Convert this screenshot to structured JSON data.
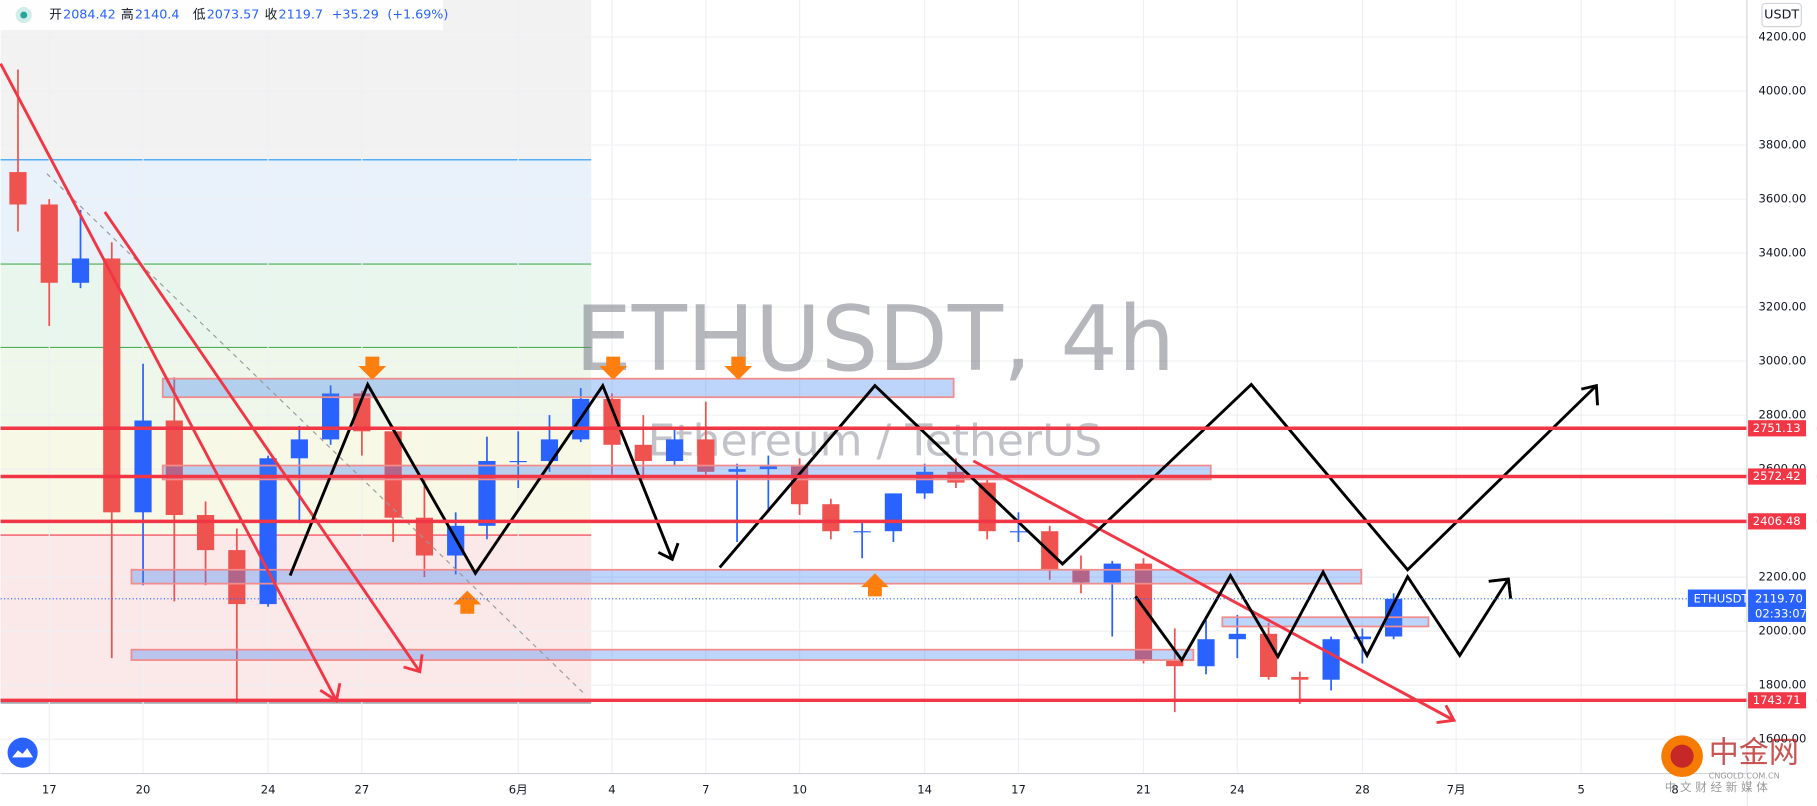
{
  "chart_data": {
    "type": "candlestick",
    "header": {
      "open_label": "开",
      "open": 2084.42,
      "high_label": "高",
      "high": 2140.4,
      "low_label": "低",
      "low": 2073.57,
      "close_label": "收",
      "close": 2119.7,
      "change": {
        "value": 35.29,
        "label": "+35.29"
      },
      "change_pct": {
        "value": 1.69,
        "label": "(+1.69%)"
      }
    },
    "watermark_title": "ETHUSDT, 4h",
    "watermark_subtitle": "Ethereum / TetherUS",
    "currency": "USDT",
    "colors": {
      "up": "#2962ff",
      "down": "#ef5350",
      "level": "#f23645"
    },
    "x": [
      -1,
      0,
      1,
      2,
      3,
      4,
      5,
      6,
      7,
      8,
      9,
      10,
      11,
      12,
      13,
      14,
      15,
      16,
      17,
      18,
      19,
      20,
      21,
      22,
      23,
      24,
      25,
      26,
      27,
      28,
      29,
      30,
      31,
      32,
      33,
      34,
      35,
      36,
      37,
      38,
      39,
      40,
      41,
      42,
      43
    ],
    "open": [
      3700,
      3580,
      3290,
      3380,
      2440,
      2780,
      2430,
      2300,
      2100,
      2640,
      2710,
      2880,
      2740,
      2420,
      2280,
      2390,
      2630,
      2630,
      2710,
      2860,
      2690,
      2630,
      2710,
      2590,
      2600,
      2610,
      2470,
      2370,
      2370,
      2510,
      2590,
      2550,
      2370,
      2370,
      2230,
      2180,
      2250,
      1890,
      1870,
      1970,
      1990,
      1830,
      1820,
      1970,
      1980
    ],
    "high": [
      4080,
      3600,
      3560,
      3440,
      2990,
      2940,
      2480,
      2380,
      2650,
      2760,
      2910,
      2890,
      2760,
      2560,
      2440,
      2720,
      2740,
      2800,
      2900,
      2880,
      2800,
      2750,
      2850,
      2620,
      2650,
      2640,
      2490,
      2410,
      2510,
      2620,
      2640,
      2560,
      2440,
      2390,
      2280,
      2260,
      2270,
      2010,
      2040,
      2060,
      2030,
      1850,
      1980,
      2010,
      2140
    ],
    "low": [
      3480,
      3130,
      3270,
      1900,
      2170,
      2110,
      2170,
      1733,
      2090,
      2400,
      2690,
      2650,
      2330,
      2200,
      2210,
      2340,
      2530,
      2590,
      2700,
      2580,
      2560,
      2610,
      2580,
      2330,
      2440,
      2430,
      2340,
      2270,
      2330,
      2490,
      2530,
      2340,
      2330,
      2190,
      2140,
      1980,
      1880,
      1700,
      1840,
      1900,
      1820,
      1730,
      1780,
      1880,
      1970
    ],
    "close": [
      3580,
      3290,
      3380,
      2440,
      2780,
      2430,
      2300,
      2100,
      2640,
      2710,
      2880,
      2740,
      2420,
      2280,
      2390,
      2630,
      2630,
      2710,
      2860,
      2690,
      2630,
      2710,
      2590,
      2600,
      2610,
      2470,
      2370,
      2370,
      2510,
      2590,
      2550,
      2370,
      2370,
      2230,
      2180,
      2250,
      1890,
      1870,
      1970,
      1990,
      1830,
      1820,
      1970,
      1980,
      2119.7
    ],
    "levels": [
      2751.13,
      2572.42,
      2406.48,
      1743.71
    ],
    "last_price": {
      "value": 2119.7,
      "label": "2119.70"
    },
    "last_symbol": "ETHUSDT",
    "countdown": "02:33:07",
    "xlim": [
      -1.556,
      54.3
    ],
    "ylim": [
      1472.4,
      4337.3
    ],
    "xticks": [
      {
        "value": 0,
        "label": "17"
      },
      {
        "value": 3,
        "label": "20"
      },
      {
        "value": 7,
        "label": "24"
      },
      {
        "value": 10,
        "label": "27"
      },
      {
        "value": 15,
        "label": "6月"
      },
      {
        "value": 18,
        "label": "4"
      },
      {
        "value": 21,
        "label": "7"
      },
      {
        "value": 24,
        "label": "10"
      },
      {
        "value": 28,
        "label": "14"
      },
      {
        "value": 31,
        "label": "17"
      },
      {
        "value": 35,
        "label": "21"
      },
      {
        "value": 38,
        "label": "24"
      },
      {
        "value": 42,
        "label": "28"
      },
      {
        "value": 45,
        "label": "7月"
      },
      {
        "value": 49,
        "label": "5"
      },
      {
        "value": 52,
        "label": "8"
      }
    ],
    "yticks": [
      {
        "value": 1600,
        "label": "1600.00"
      },
      {
        "value": 1800,
        "label": "1800.00"
      },
      {
        "value": 2000,
        "label": "2000.00"
      },
      {
        "value": 2200,
        "label": "2200.00"
      },
      {
        "value": 2400,
        "label": "2400.00"
      },
      {
        "value": 2600,
        "label": "2600.00"
      },
      {
        "value": 2800,
        "label": "2800.00"
      },
      {
        "value": 3000,
        "label": "3000.00"
      },
      {
        "value": 3200,
        "label": "3200.00"
      },
      {
        "value": 3400,
        "label": "3400.00"
      },
      {
        "value": 3600,
        "label": "3600.00"
      },
      {
        "value": 3800,
        "label": "3800.00"
      },
      {
        "value": 4000,
        "label": "4000.00"
      },
      {
        "value": 4200,
        "label": "4200.00"
      }
    ],
    "grid": true
  },
  "logo": {
    "name": "中金网",
    "domain": "CNGOLD.COM.CN",
    "slogan": "中 文 财 经 新 媒 体"
  }
}
